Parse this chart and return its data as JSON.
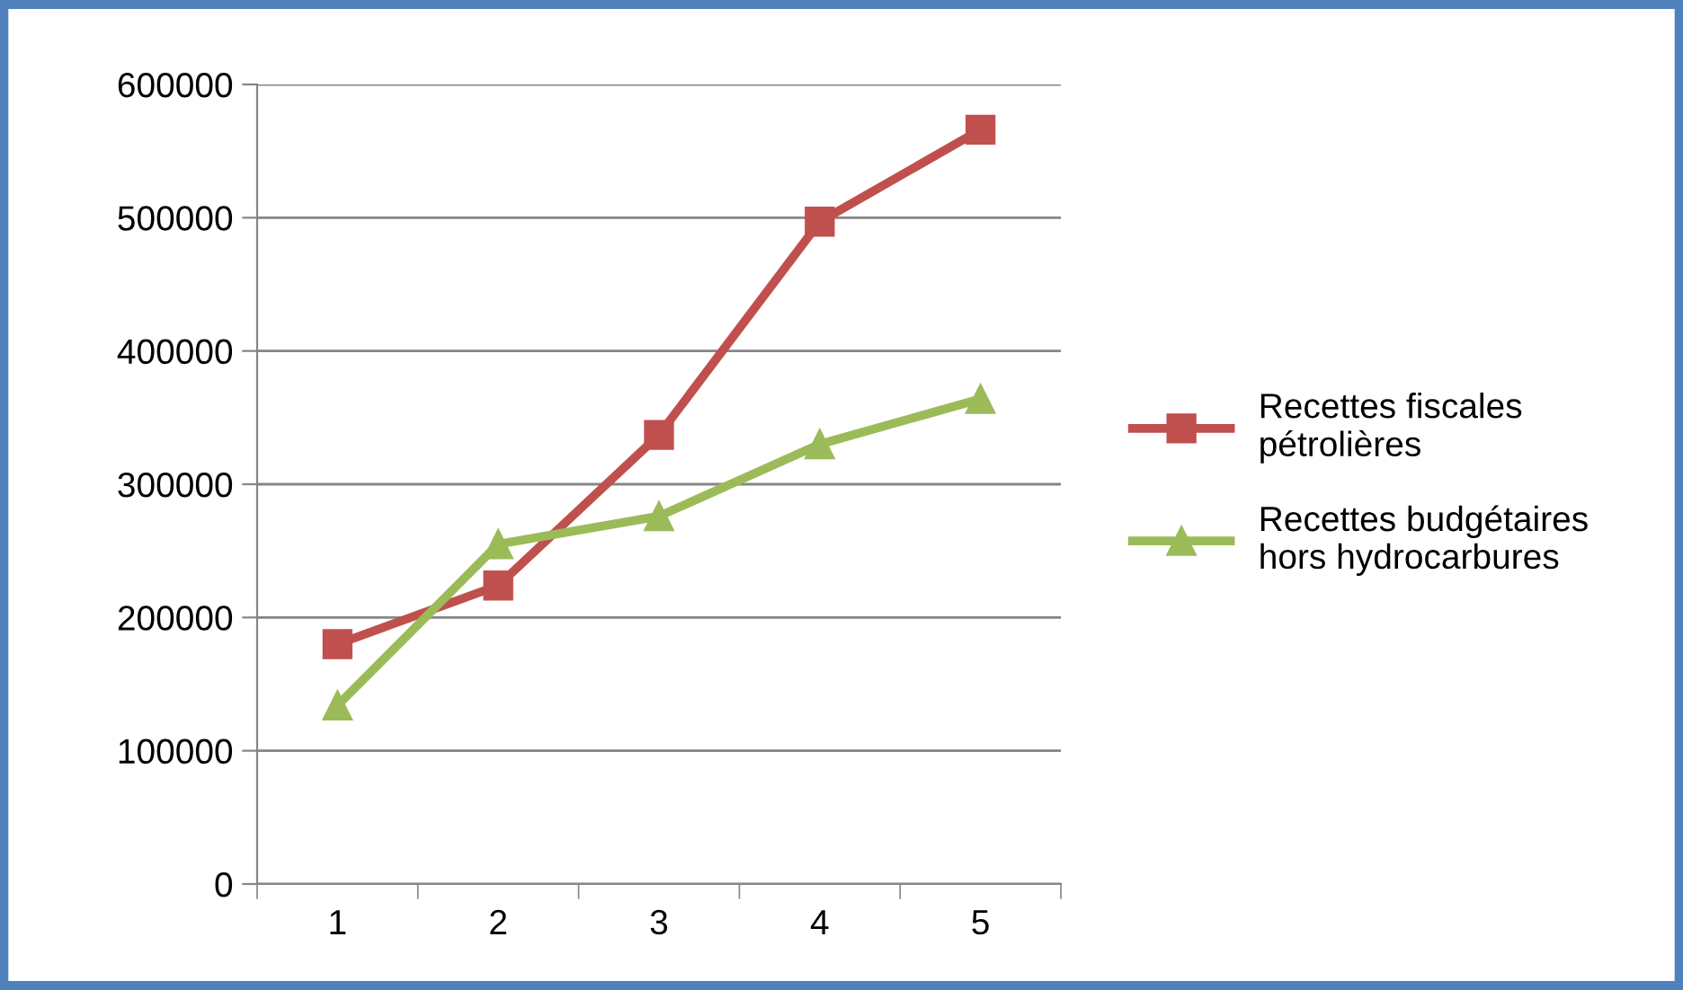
{
  "chart_data": {
    "type": "line",
    "categories": [
      "1",
      "2",
      "3",
      "4",
      "5"
    ],
    "series": [
      {
        "name": "Recettes fiscales\npétrolières",
        "color": "#c0504d",
        "marker": "square",
        "values": [
          180000,
          224000,
          337000,
          497000,
          566000
        ]
      },
      {
        "name": "Recettes budgétaires\nhors hydrocarbures",
        "color": "#9bbb59",
        "marker": "triangle",
        "values": [
          134000,
          255000,
          276000,
          330000,
          364000
        ]
      }
    ],
    "ylim": [
      0,
      600000
    ],
    "yticks": [
      0,
      100000,
      200000,
      300000,
      400000,
      500000,
      600000
    ],
    "grid": "y",
    "legend": "right",
    "line_style": "solid"
  }
}
